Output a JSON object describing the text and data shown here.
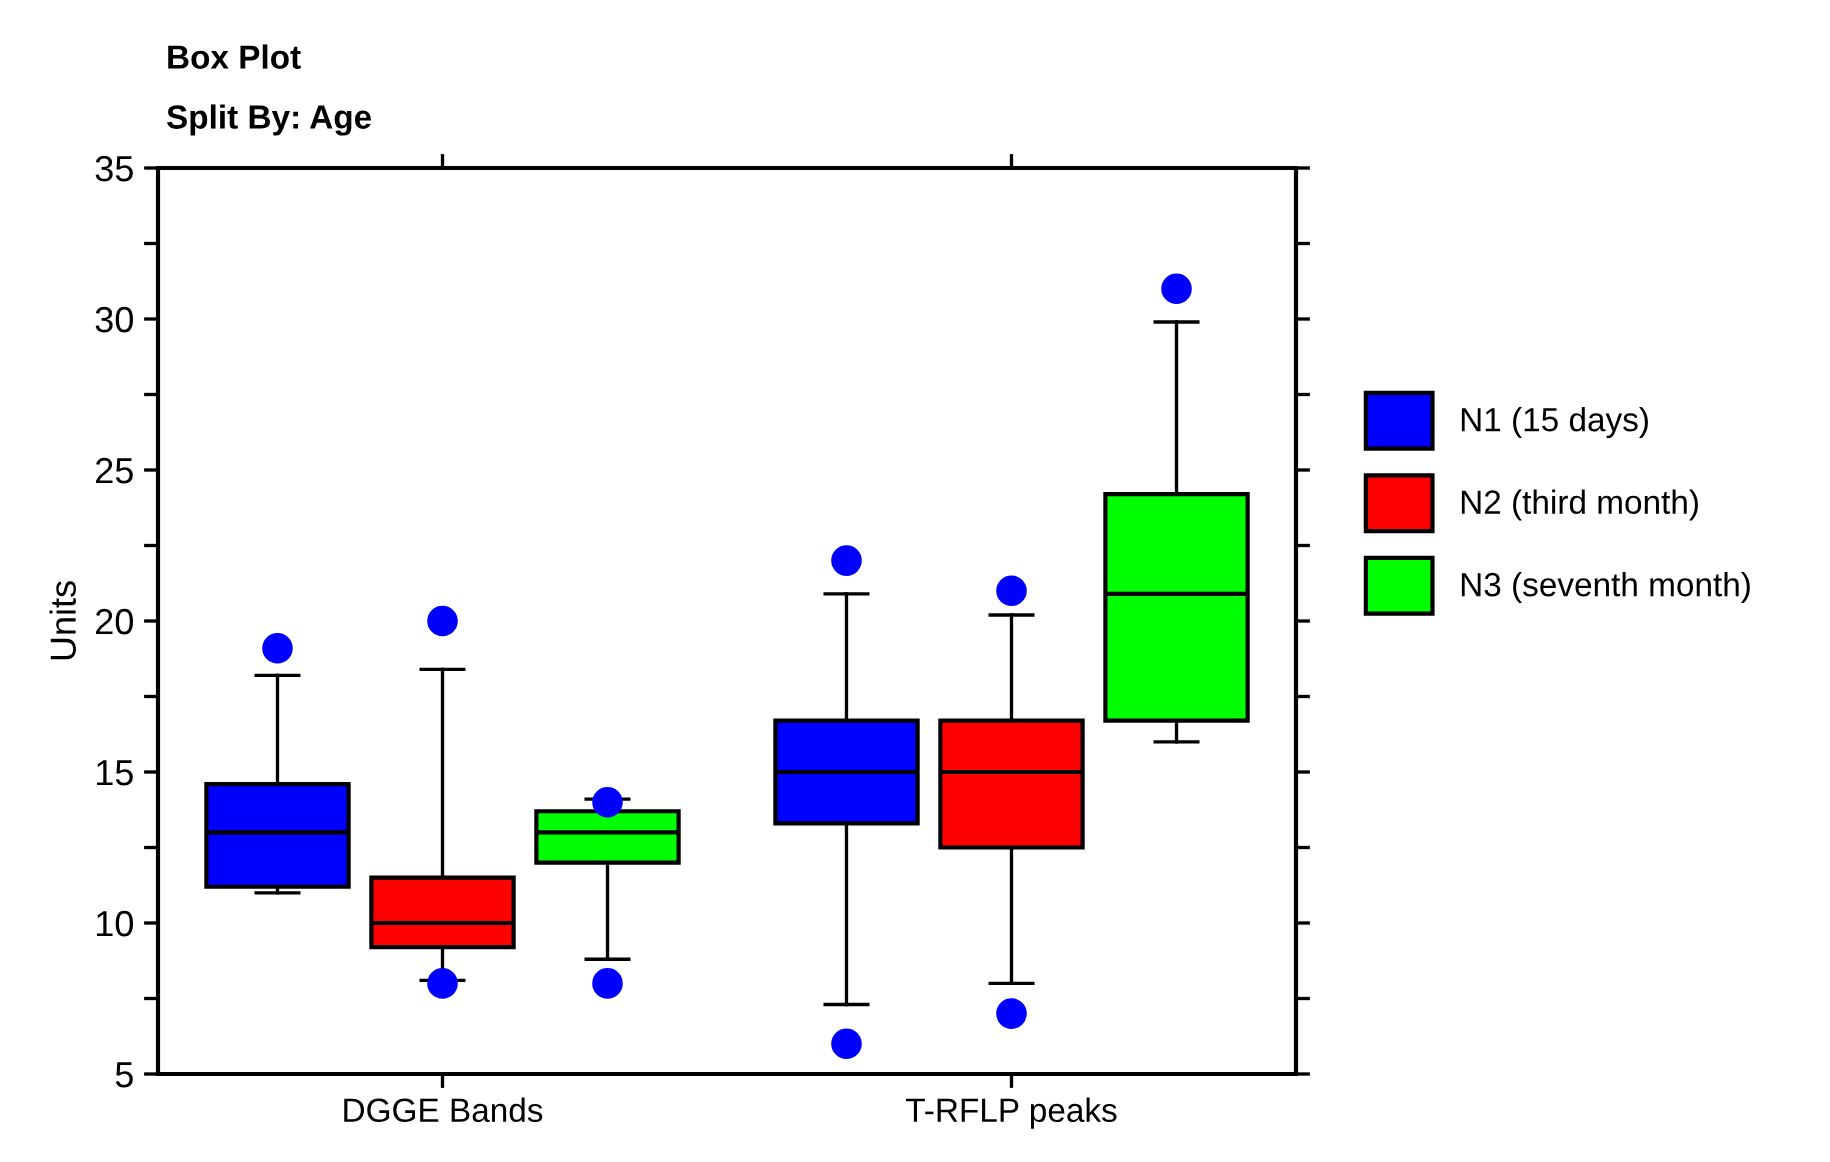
{
  "chart_data": {
    "type": "box",
    "title": "Box Plot",
    "subtitle": "Split By: Age",
    "ylabel": "Units",
    "categories": [
      "DGGE Bands",
      "T-RFLP peaks"
    ],
    "series": [
      {
        "name": "N1 (15 days)",
        "color": "#0000ff",
        "boxes": [
          {
            "low": 11,
            "q1": 11.2,
            "median": 13,
            "q3": 14.6,
            "high": 18.2,
            "outliers": [
              19.1
            ]
          },
          {
            "low": 7.3,
            "q1": 13.3,
            "median": 15,
            "q3": 16.7,
            "high": 20.9,
            "outliers": [
              22,
              6
            ]
          }
        ]
      },
      {
        "name": "N2 (third month)",
        "color": "#ff0000",
        "boxes": [
          {
            "low": 8.1,
            "q1": 9.2,
            "median": 10,
            "q3": 11.5,
            "high": 18.4,
            "outliers": [
              20,
              8
            ]
          },
          {
            "low": 8,
            "q1": 12.5,
            "median": 15,
            "q3": 16.7,
            "high": 20.2,
            "outliers": [
              21,
              7
            ]
          }
        ]
      },
      {
        "name": "N3 (seventh month)",
        "color": "#00ff00",
        "boxes": [
          {
            "low": 8.8,
            "q1": 12,
            "median": 13,
            "q3": 13.7,
            "high": 14.1,
            "outliers": [
              14,
              8
            ]
          },
          {
            "low": 16,
            "q1": 16.7,
            "median": 20.9,
            "q3": 24.2,
            "high": 29.9,
            "outliers": [
              31
            ]
          }
        ]
      }
    ],
    "ylim": [
      5,
      35
    ],
    "yticks": [
      5,
      {
        "value": 7.5,
        "label": null
      },
      10,
      {
        "value": 12.5,
        "label": null
      },
      15,
      {
        "value": 17.5,
        "label": null
      },
      20,
      {
        "value": 22.5,
        "label": null
      },
      25,
      {
        "value": 27.5,
        "label": null
      },
      30,
      {
        "value": 32.5,
        "label": null
      },
      35
    ],
    "grid": false,
    "legend": "right"
  }
}
